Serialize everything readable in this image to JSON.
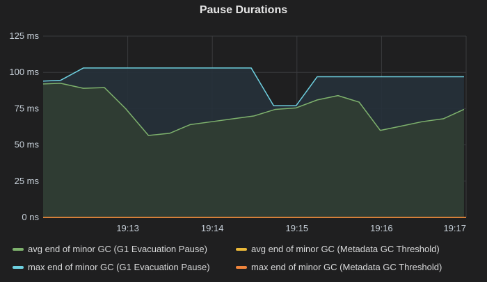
{
  "panel": {
    "title": "Pause Durations"
  },
  "chart_data": {
    "type": "area",
    "title": "Pause Durations",
    "xlabel": "",
    "ylabel": "",
    "ylim": [
      0,
      125
    ],
    "xlim": [
      0,
      100
    ],
    "y_unit": "ms",
    "y_ticks": [
      {
        "value": 0,
        "label": "0 ns"
      },
      {
        "value": 25,
        "label": "25 ms"
      },
      {
        "value": 50,
        "label": "50 ms"
      },
      {
        "value": 75,
        "label": "75 ms"
      },
      {
        "value": 100,
        "label": "100 ms"
      },
      {
        "value": 125,
        "label": "125 ms"
      }
    ],
    "x_ticks": [
      {
        "value": 20,
        "label": "19:13"
      },
      {
        "value": 40,
        "label": "19:14"
      },
      {
        "value": 60,
        "label": "19:15"
      },
      {
        "value": 80,
        "label": "19:16"
      },
      {
        "value": 100,
        "label": "19:17"
      }
    ],
    "grid": true,
    "legend_position": "bottom",
    "series": [
      {
        "name": "avg end of minor GC (G1 Evacuation Pause)",
        "color": "#7eb26d",
        "fill": true,
        "x": [
          0,
          4.1,
          9.5,
          14.5,
          19.5,
          24.9,
          29.9,
          34.8,
          39.9,
          44.9,
          49.9,
          54.9,
          59.8,
          64.8,
          69.7,
          74.7,
          79.7,
          84.7,
          89.6,
          94.6,
          99.5
        ],
        "y": [
          92,
          92.5,
          89,
          89.5,
          75,
          56.5,
          58,
          64,
          66,
          68,
          70,
          74.5,
          75.5,
          81,
          84,
          79.5,
          60,
          63,
          66,
          68,
          74.5
        ]
      },
      {
        "name": "avg end of minor GC (Metadata GC Threshold)",
        "color": "#eab839",
        "fill": false,
        "x": [
          0,
          100
        ],
        "y": [
          0,
          0
        ]
      },
      {
        "name": "max end of minor GC (G1 Evacuation Pause)",
        "color": "#6ed0e0",
        "fill": true,
        "x": [
          0,
          4.1,
          9.5,
          49.2,
          54.5,
          59.8,
          64.8,
          99.5
        ],
        "y": [
          94,
          94.5,
          103,
          103,
          77,
          77,
          97,
          97
        ]
      },
      {
        "name": "max end of minor GC (Metadata GC Threshold)",
        "color": "#ef843c",
        "fill": false,
        "x": [
          0,
          100
        ],
        "y": [
          0,
          0
        ]
      }
    ]
  },
  "legend": {
    "items": [
      {
        "label": "avg end of minor GC (G1 Evacuation Pause)",
        "color": "#7eb26d"
      },
      {
        "label": "avg end of minor GC (Metadata GC Threshold)",
        "color": "#eab839"
      },
      {
        "label": "max end of minor GC (G1 Evacuation Pause)",
        "color": "#6ed0e0"
      },
      {
        "label": "max end of minor GC (Metadata GC Threshold)",
        "color": "#ef843c"
      }
    ]
  }
}
